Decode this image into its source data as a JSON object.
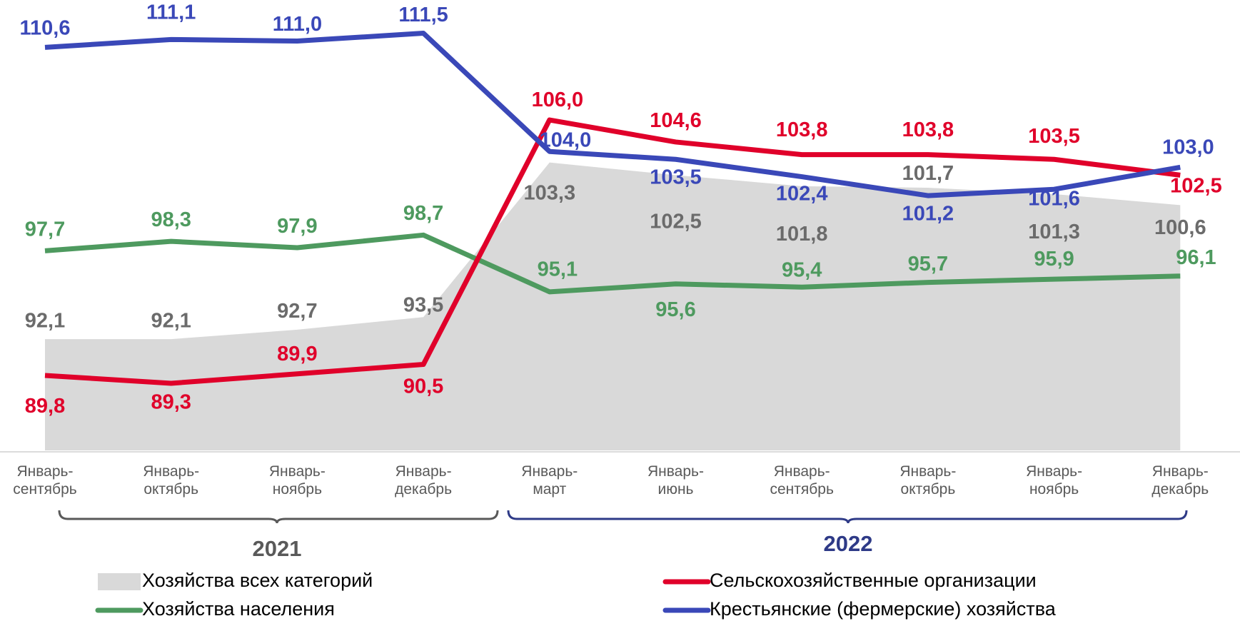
{
  "chart_data": {
    "type": "line",
    "categories": [
      "Январь-\nсентябрь",
      "Январь-\nоктябрь",
      "Январь-\nноябрь",
      "Январь-\nдекабрь",
      "Январь-\nмарт",
      "Январь-\nиюнь",
      "Январь-\nсентябрь",
      "Январь-\nоктябрь",
      "Январь-\nноябрь",
      "Январь-\nдекабрь"
    ],
    "groups": [
      "2021",
      "2022"
    ],
    "series": [
      {
        "name": "Хозяйства всех категорий",
        "kind": "area",
        "color": "#d9d9d9",
        "label_color": "#6b6b6b",
        "values": [
          92.1,
          92.1,
          92.7,
          93.5,
          103.3,
          102.5,
          101.8,
          101.7,
          101.3,
          100.6
        ],
        "value_labels": [
          "92,1",
          "92,1",
          "92,7",
          "93,5",
          "103,3",
          "102,5",
          "101,8",
          "101,7",
          "101,3",
          "100,6"
        ]
      },
      {
        "name": "Хозяйства населения",
        "kind": "line",
        "color": "#4e9a5f",
        "label_color": "#4e9a5f",
        "values": [
          97.7,
          98.3,
          97.9,
          98.7,
          95.1,
          95.6,
          95.4,
          95.7,
          95.9,
          96.1
        ],
        "value_labels": [
          "97,7",
          "98,3",
          "97,9",
          "98,7",
          "95,1",
          "95,6",
          "95,4",
          "95,7",
          "95,9",
          "96,1"
        ]
      },
      {
        "name": "Сельскохозяйственные организации",
        "kind": "line",
        "color": "#e0002a",
        "label_color": "#e0002a",
        "values": [
          89.8,
          89.3,
          89.9,
          90.5,
          106.0,
          104.6,
          103.8,
          103.8,
          103.5,
          102.5
        ],
        "value_labels": [
          "89,8",
          "89,3",
          "89,9",
          "90,5",
          "106,0",
          "104,6",
          "103,8",
          "103,8",
          "103,5",
          "102,5"
        ]
      },
      {
        "name": "Крестьянские (фермерские) хозяйства",
        "kind": "line",
        "color": "#3a48b8",
        "label_color": "#3a48b8",
        "values": [
          110.6,
          111.1,
          111.0,
          111.5,
          104.0,
          103.5,
          102.4,
          101.2,
          101.6,
          103.0
        ],
        "value_labels": [
          "110,6",
          "111,1",
          "111,0",
          "111,5",
          "104,0",
          "103,5",
          "102,4",
          "101,2",
          "101,6",
          "103,0"
        ]
      }
    ]
  }
}
